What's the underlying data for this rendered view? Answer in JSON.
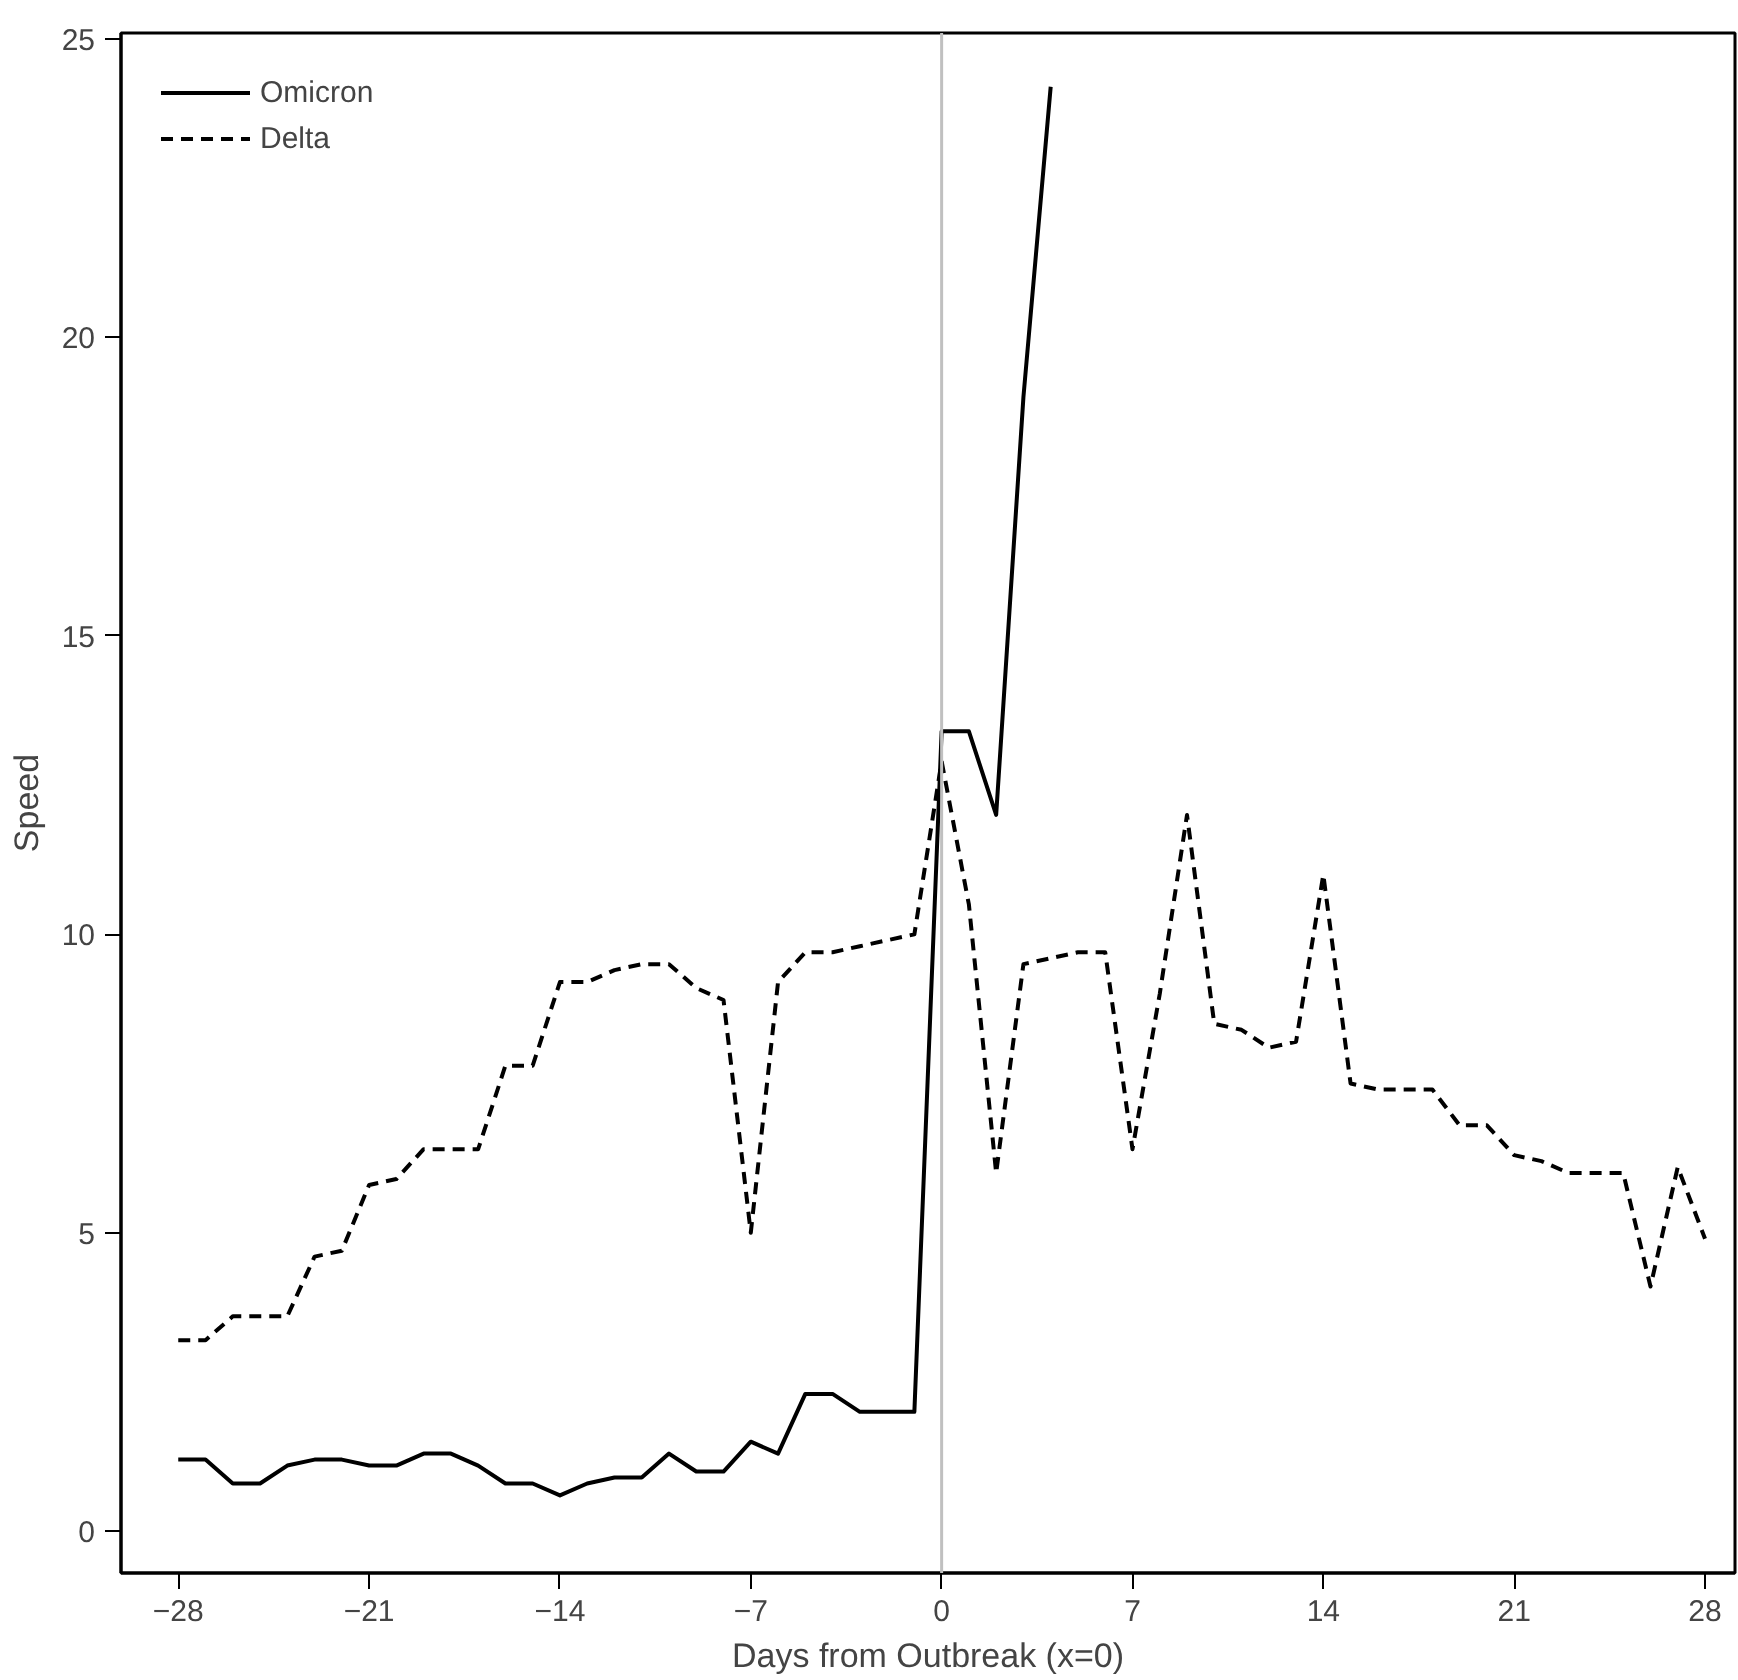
{
  "chart_data": {
    "type": "line",
    "xlabel": "Days from Outbreak (x=0)",
    "ylabel": "Speed",
    "x": [
      -28,
      -27,
      -26,
      -25,
      -24,
      -23,
      -22,
      -21,
      -20,
      -19,
      -18,
      -17,
      -16,
      -15,
      -14,
      -13,
      -12,
      -11,
      -10,
      -9,
      -8,
      -7,
      -6,
      -5,
      -4,
      -3,
      -2,
      -1,
      0,
      1,
      2,
      3,
      4,
      5,
      6,
      7,
      8,
      9,
      10,
      11,
      12,
      13,
      14,
      15,
      16,
      17,
      18,
      19,
      20,
      21,
      22,
      23,
      24,
      25,
      26,
      27,
      28
    ],
    "series": [
      {
        "name": "Omicron",
        "color": "#000000",
        "line_style": "solid",
        "x": [
          -28,
          -27,
          -26,
          -25,
          -24,
          -23,
          -22,
          -21,
          -20,
          -19,
          -18,
          -17,
          -16,
          -15,
          -14,
          -13,
          -12,
          -11,
          -10,
          -9,
          -8,
          -7,
          -6,
          -5,
          -4,
          -3,
          -2,
          -1,
          0,
          1,
          2,
          3,
          4
        ],
        "values": [
          1.2,
          1.2,
          0.8,
          0.8,
          1.1,
          1.2,
          1.2,
          1.1,
          1.1,
          1.3,
          1.3,
          1.1,
          0.8,
          0.8,
          0.6,
          0.8,
          0.9,
          0.9,
          1.3,
          1.0,
          1.0,
          1.5,
          1.3,
          2.3,
          2.3,
          2.0,
          2.0,
          2.0,
          13.4,
          13.4,
          12.0,
          19.0,
          24.2
        ]
      },
      {
        "name": "Delta",
        "color": "#000000",
        "line_style": "dashed",
        "values": [
          3.2,
          3.2,
          3.6,
          3.6,
          3.6,
          4.6,
          4.7,
          5.8,
          5.9,
          6.4,
          6.4,
          6.4,
          7.8,
          7.8,
          9.2,
          9.2,
          9.4,
          9.5,
          9.5,
          9.1,
          8.9,
          5.0,
          9.2,
          9.7,
          9.7,
          9.8,
          9.9,
          10.0,
          12.9,
          10.5,
          6.0,
          9.5,
          9.6,
          9.7,
          9.7,
          6.4,
          9.0,
          12.0,
          8.5,
          8.4,
          8.1,
          8.2,
          11.0,
          7.5,
          7.4,
          7.4,
          7.4,
          6.8,
          6.8,
          6.3,
          6.2,
          6.0,
          6.0,
          6.0,
          4.1,
          6.1,
          4.9
        ]
      }
    ],
    "xlim": [
      -30.1,
      29.1
    ],
    "ylim": [
      -0.7,
      25.1
    ],
    "xticks": [
      -28,
      -21,
      -14,
      -7,
      0,
      7,
      14,
      21,
      28
    ],
    "yticks": [
      0,
      5,
      10,
      15,
      20,
      25
    ],
    "ref_lines": [
      {
        "axis": "x",
        "value": 0,
        "color": "#c0c0c0"
      }
    ],
    "grid": false,
    "legend": "top left"
  }
}
